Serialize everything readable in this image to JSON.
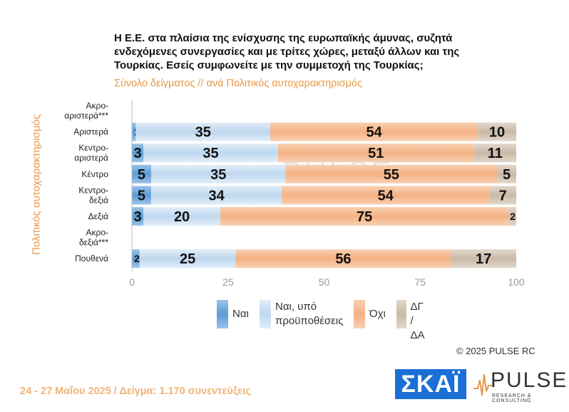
{
  "title": "Η Ε.Ε. στα πλαίσια της ενίσχυσης της ευρωπαϊκής άμυνας, συζητά ενδεχόμενες συνεργασίες και με τρίτες χώρες, μεταξύ άλλων και της Τουρκίας. Εσείς συμφωνείτε με την συμμετοχή της Τουρκίας;",
  "subtitle": "Σύνολο δείγματος // ανά Πολιτικός αυτοχαρακτηρισμός",
  "yaxis_label": "Πολιτικός αυτοχαρακτηρισμός",
  "legend": {
    "nai": "Ναι",
    "nai_ypo_1": "Ναι, υπό",
    "nai_ypo_2": "προϋποθέσεις",
    "oxi": "Όχι",
    "dg_1": "ΔΓ /",
    "dg_2": "ΔΑ"
  },
  "copyright": "© 2025 PULSE RC",
  "footer": "24 - 27 Μαΐου 2025  /  Δείγμα:  1.170 συνεντεύξεις",
  "logos": {
    "skai": "ΣΚΑΪ",
    "pulse": "PULSE",
    "pulse_sub": "RESEARCH & CONSULTING"
  },
  "colors": {
    "nai": "#5b9bd5",
    "nai_ypo": "#bdd7ee",
    "oxi": "#f4b183",
    "dg": "#c9b9a6"
  },
  "chart_data": {
    "type": "bar",
    "orientation": "horizontal",
    "stacked": true,
    "categories": [
      [
        "Ακρο-",
        "αριστερά***"
      ],
      [
        "Αριστερά"
      ],
      [
        "Κεντρο-",
        "αριστερά"
      ],
      [
        "Κέντρο"
      ],
      [
        "Κεντρο-",
        "δεξιά"
      ],
      [
        "Δεξιά"
      ],
      [
        "Ακρο-",
        "δεξιά***"
      ],
      [
        "Πουθενά"
      ]
    ],
    "series": [
      {
        "name": "Ναι",
        "values": [
          null,
          1,
          3,
          5,
          5,
          3,
          null,
          2
        ]
      },
      {
        "name": "Ναι, υπό προϋποθέσεις",
        "values": [
          null,
          35,
          35,
          35,
          34,
          20,
          null,
          25
        ]
      },
      {
        "name": "Όχι",
        "values": [
          null,
          54,
          51,
          55,
          54,
          75,
          null,
          56
        ]
      },
      {
        "name": "ΔΓ / ΔΑ",
        "values": [
          null,
          10,
          11,
          5,
          7,
          2,
          null,
          17
        ]
      }
    ],
    "xlim": [
      0,
      100
    ],
    "xticks": [
      0,
      25,
      50,
      75,
      100
    ]
  }
}
